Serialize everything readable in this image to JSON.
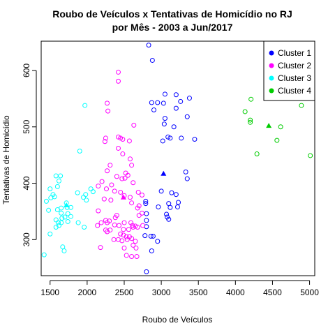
{
  "chart_data": {
    "type": "scatter",
    "title": [
      "Roubo de Veículos x Tentativas de Homicídio no RJ",
      "por Mês - 2003 a Jun/2017"
    ],
    "xlabel": "Roubo de Veículos",
    "ylabel": "Tentativas de Homicídio",
    "xlim": [
      1380,
      5070
    ],
    "ylim": [
      236,
      652
    ],
    "x_ticks": [
      1500,
      2000,
      2500,
      3000,
      3500,
      4000,
      4500,
      5000
    ],
    "y_ticks": [
      300,
      400,
      500,
      600
    ],
    "legend_position": "top-right",
    "series": [
      {
        "name": "Cluster 1",
        "color": "#0000ff",
        "centroid": [
          3030,
          417
        ],
        "points": [
          [
            2830,
            645
          ],
          [
            2880,
            618
          ],
          [
            3050,
            558
          ],
          [
            3200,
            557
          ],
          [
            3380,
            551
          ],
          [
            2870,
            543
          ],
          [
            2950,
            543
          ],
          [
            3030,
            542
          ],
          [
            3260,
            545
          ],
          [
            3200,
            533
          ],
          [
            2900,
            530
          ],
          [
            3040,
            505
          ],
          [
            3050,
            515
          ],
          [
            3170,
            500
          ],
          [
            3350,
            518
          ],
          [
            3090,
            482
          ],
          [
            3120,
            480
          ],
          [
            3270,
            480
          ],
          [
            3450,
            478
          ],
          [
            3020,
            475
          ],
          [
            3330,
            420
          ],
          [
            3350,
            408
          ],
          [
            3000,
            386
          ],
          [
            3140,
            383
          ],
          [
            3200,
            380
          ],
          [
            3100,
            364
          ],
          [
            3230,
            366
          ],
          [
            3220,
            358
          ],
          [
            2790,
            368
          ],
          [
            2790,
            364
          ],
          [
            2960,
            358
          ],
          [
            3120,
            357
          ],
          [
            3070,
            345
          ],
          [
            3080,
            340
          ],
          [
            3100,
            336
          ],
          [
            2800,
            346
          ],
          [
            2800,
            334
          ],
          [
            2800,
            323
          ],
          [
            2780,
            307
          ],
          [
            2860,
            306
          ],
          [
            2890,
            306
          ],
          [
            2950,
            297
          ],
          [
            2870,
            280
          ],
          [
            2800,
            243
          ]
        ]
      },
      {
        "name": "Cluster 2",
        "color": "#ff00ff",
        "centroid": [
          2490,
          375
        ],
        "points": [
          [
            2420,
            597
          ],
          [
            2420,
            581
          ],
          [
            2270,
            542
          ],
          [
            2280,
            528
          ],
          [
            2630,
            503
          ],
          [
            2250,
            480
          ],
          [
            2420,
            482
          ],
          [
            2450,
            480
          ],
          [
            2480,
            478
          ],
          [
            2240,
            474
          ],
          [
            2570,
            475
          ],
          [
            2420,
            462
          ],
          [
            2480,
            452
          ],
          [
            2580,
            443
          ],
          [
            2600,
            432
          ],
          [
            2310,
            432
          ],
          [
            2520,
            418
          ],
          [
            2550,
            414
          ],
          [
            2270,
            422
          ],
          [
            2400,
            412
          ],
          [
            2470,
            408
          ],
          [
            2510,
            409
          ],
          [
            2620,
            401
          ],
          [
            2200,
            403
          ],
          [
            2330,
            397
          ],
          [
            2150,
            395
          ],
          [
            2260,
            390
          ],
          [
            2370,
            386
          ],
          [
            2450,
            384
          ],
          [
            2690,
            384
          ],
          [
            2500,
            378
          ],
          [
            2580,
            375
          ],
          [
            2740,
            379
          ],
          [
            2230,
            372
          ],
          [
            2320,
            370
          ],
          [
            2600,
            365
          ],
          [
            2700,
            360
          ],
          [
            2150,
            351
          ],
          [
            2400,
            343
          ],
          [
            2380,
            339
          ],
          [
            2680,
            356
          ],
          [
            2700,
            343
          ],
          [
            2740,
            347
          ],
          [
            2750,
            325
          ],
          [
            2250,
            334
          ],
          [
            2300,
            333
          ],
          [
            2270,
            330
          ],
          [
            2190,
            330
          ],
          [
            2370,
            326
          ],
          [
            2430,
            325
          ],
          [
            2500,
            330
          ],
          [
            2590,
            330
          ],
          [
            2610,
            325
          ],
          [
            2650,
            324
          ],
          [
            2140,
            325
          ],
          [
            2310,
            317
          ],
          [
            2250,
            317
          ],
          [
            2270,
            314
          ],
          [
            2490,
            318
          ],
          [
            2560,
            318
          ],
          [
            2620,
            322
          ],
          [
            2680,
            322
          ],
          [
            2450,
            310
          ],
          [
            2490,
            308
          ],
          [
            2530,
            305
          ],
          [
            2570,
            305
          ],
          [
            2540,
            300
          ],
          [
            2600,
            302
          ],
          [
            2420,
            300
          ],
          [
            2470,
            298
          ],
          [
            2360,
            300
          ],
          [
            2650,
            297
          ],
          [
            2620,
            290
          ],
          [
            2500,
            285
          ],
          [
            2180,
            286
          ],
          [
            2530,
            272
          ],
          [
            2600,
            270
          ],
          [
            2660,
            285
          ],
          [
            2670,
            270
          ]
        ]
      },
      {
        "name": "Cluster 3",
        "color": "#00ffff",
        "centroid": [
          1720,
          361
        ],
        "points": [
          [
            1970,
            538
          ],
          [
            1900,
            457
          ],
          [
            1580,
            413
          ],
          [
            1640,
            413
          ],
          [
            1620,
            404
          ],
          [
            1600,
            394
          ],
          [
            1500,
            390
          ],
          [
            1540,
            380
          ],
          [
            1510,
            374
          ],
          [
            1560,
            376
          ],
          [
            1450,
            368
          ],
          [
            1980,
            380
          ],
          [
            1870,
            383
          ],
          [
            2050,
            390
          ],
          [
            2080,
            385
          ],
          [
            1990,
            370
          ],
          [
            1950,
            375
          ],
          [
            1720,
            365
          ],
          [
            1730,
            357
          ],
          [
            1780,
            357
          ],
          [
            1650,
            356
          ],
          [
            1600,
            353
          ],
          [
            1480,
            352
          ],
          [
            1780,
            341
          ],
          [
            1650,
            347
          ],
          [
            1700,
            340
          ],
          [
            1740,
            346
          ],
          [
            1660,
            338
          ],
          [
            1580,
            335
          ],
          [
            1610,
            330
          ],
          [
            1650,
            330
          ],
          [
            1740,
            332
          ],
          [
            1620,
            325
          ],
          [
            1580,
            322
          ],
          [
            1880,
            330
          ],
          [
            1960,
            322
          ],
          [
            1500,
            310
          ],
          [
            1670,
            287
          ],
          [
            1690,
            280
          ],
          [
            1420,
            273
          ]
        ]
      },
      {
        "name": "Cluster 4",
        "color": "#00cc00",
        "centroid": [
          4450,
          502
        ],
        "points": [
          [
            4210,
            549
          ],
          [
            4890,
            538
          ],
          [
            4130,
            527
          ],
          [
            4200,
            512
          ],
          [
            4200,
            508
          ],
          [
            4610,
            500
          ],
          [
            4560,
            476
          ],
          [
            4290,
            452
          ],
          [
            5010,
            449
          ]
        ]
      }
    ]
  }
}
